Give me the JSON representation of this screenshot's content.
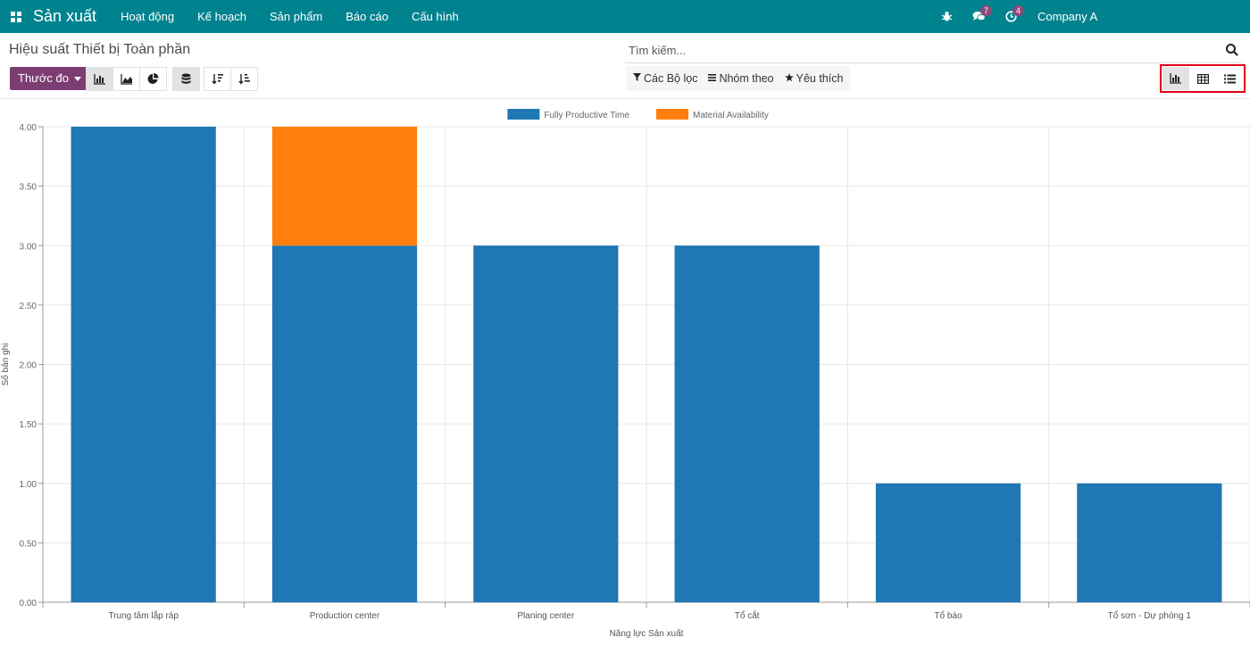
{
  "navbar": {
    "app_name": "Sản xuất",
    "menu": [
      "Hoạt động",
      "Kế hoạch",
      "Sản phẩm",
      "Báo cáo",
      "Cấu hình"
    ],
    "messages_count": "7",
    "activities_count": "4",
    "company": "Company A"
  },
  "control_panel": {
    "breadcrumb": "Hiệu suất Thiết bị Toàn phần",
    "search_placeholder": "Tìm kiếm...",
    "measure_label": "Thước đo",
    "filters_label": "Các Bộ lọc",
    "group_by_label": "Nhóm theo",
    "favorites_label": "Yêu thích"
  },
  "colors": {
    "navbar": "#00838f",
    "measure_button": "#7c3d72",
    "series_blue": "#1f77b4",
    "series_orange": "#ff7f0e",
    "highlight_box": "#e0001b"
  },
  "chart_data": {
    "type": "bar",
    "stacked": true,
    "categories": [
      "Trung tâm lắp ráp",
      "Production center",
      "Planing center",
      "Tổ cắt",
      "Tổ bào",
      "Tổ sơn - Dự phòng 1"
    ],
    "series": [
      {
        "name": "Fully Productive Time",
        "color": "#1f77b4",
        "values": [
          4,
          3,
          3,
          3,
          1,
          1
        ]
      },
      {
        "name": "Material Availability",
        "color": "#ff7f0e",
        "values": [
          0,
          1,
          0,
          0,
          0,
          0
        ]
      }
    ],
    "xlabel": "Năng lực Sản xuất",
    "ylabel": "Số bản ghi",
    "ylim": [
      0,
      4
    ],
    "yticks": [
      "0.00",
      "0.50",
      "1.00",
      "1.50",
      "2.00",
      "2.50",
      "3.00",
      "3.50",
      "4.00"
    ],
    "legend_position": "top-center",
    "grid": true
  }
}
